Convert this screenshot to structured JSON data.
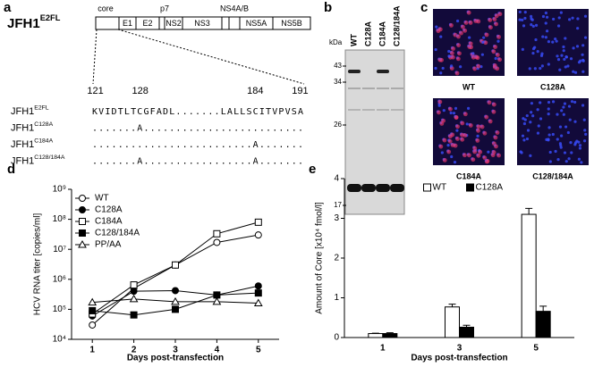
{
  "panels": {
    "a": {
      "letter": "a",
      "construct": {
        "name": "JFH1",
        "sup": "E2FL"
      },
      "regions_above": [
        "core",
        "p7",
        "NS4A/B"
      ],
      "regions": [
        "E1",
        "E2",
        "NS2",
        "NS3",
        "NS5A",
        "NS5B"
      ],
      "positions": [
        121,
        128,
        184,
        191
      ],
      "alignment": [
        {
          "name": "JFH1",
          "sup": "E2FL",
          "seq": "KVIDTLTCGFADL.......LALLSCITVPVSA"
        },
        {
          "name": "JFH1",
          "sup": "C128A",
          "seq": ".......A........................."
        },
        {
          "name": "JFH1",
          "sup": "C184A",
          "seq": ".........................A......."
        },
        {
          "name": "JFH1",
          "sup": "C128/184A",
          "seq": ".......A.................A......."
        }
      ]
    },
    "b": {
      "letter": "b",
      "lanes": [
        "WT",
        "C128A",
        "C184A",
        "C128/184A"
      ],
      "unit": "kDa",
      "markers": [
        43,
        34,
        26,
        17
      ]
    },
    "c": {
      "letter": "c",
      "images": [
        "WT",
        "C128A",
        "C184A",
        "C128/184A"
      ]
    }
  },
  "chart_data": [
    {
      "type": "line",
      "label": "d",
      "x_label": "Days post-transfection",
      "y_label": "HCV RNA titer [copies/ml]",
      "x": [
        1,
        2,
        3,
        4,
        5
      ],
      "xlim": [
        0.5,
        5.5
      ],
      "xticks": [
        1,
        2,
        3,
        4,
        5
      ],
      "log_y": true,
      "ylim": [
        10000,
        1000000000
      ],
      "yticks": [
        {
          "value": 10000,
          "label": "10⁴"
        },
        {
          "value": 100000,
          "label": "10⁵"
        },
        {
          "value": 1000000,
          "label": "10⁶"
        },
        {
          "value": 10000000,
          "label": "10⁷"
        },
        {
          "value": 100000000,
          "label": "10⁸"
        },
        {
          "value": 1000000000,
          "label": "10⁹"
        }
      ],
      "legend": "upper left",
      "series": [
        {
          "name": "WT",
          "color": "#000000",
          "marker": "circle",
          "filled": false,
          "values": [
            30000,
            500000,
            3000000,
            17000000,
            30000000
          ]
        },
        {
          "name": "C128A",
          "color": "#000000",
          "marker": "circle",
          "filled": true,
          "values": [
            60000,
            400000,
            420000,
            300000,
            600000
          ]
        },
        {
          "name": "C184A",
          "color": "#000000",
          "marker": "square",
          "filled": false,
          "values": [
            70000,
            650000,
            3000000,
            33000000,
            80000000
          ]
        },
        {
          "name": "C128/184A",
          "color": "#000000",
          "marker": "square",
          "filled": true,
          "values": [
            90000,
            65000,
            100000,
            300000,
            350000
          ]
        },
        {
          "name": "PP/AA",
          "color": "#000000",
          "marker": "triangle",
          "filled": false,
          "values": [
            170000,
            220000,
            180000,
            180000,
            160000
          ]
        }
      ]
    },
    {
      "type": "bar",
      "label": "e",
      "x_label": "Days post-transfection",
      "y_label": "Amount of Core [x10⁴ fmol/l]",
      "categories": [
        "1",
        "3",
        "5"
      ],
      "ylim": [
        0,
        4
      ],
      "yticks": [
        0,
        1,
        2,
        3,
        4
      ],
      "legend": "upper center",
      "series": [
        {
          "name": "WT",
          "color": "#ffffff",
          "values": [
            0.1,
            0.77,
            3.1
          ],
          "errors": [
            0.01,
            0.07,
            0.15
          ]
        },
        {
          "name": "C128A",
          "color": "#000000",
          "values": [
            0.1,
            0.26,
            0.66
          ],
          "errors": [
            0.02,
            0.05,
            0.13
          ]
        }
      ]
    }
  ]
}
